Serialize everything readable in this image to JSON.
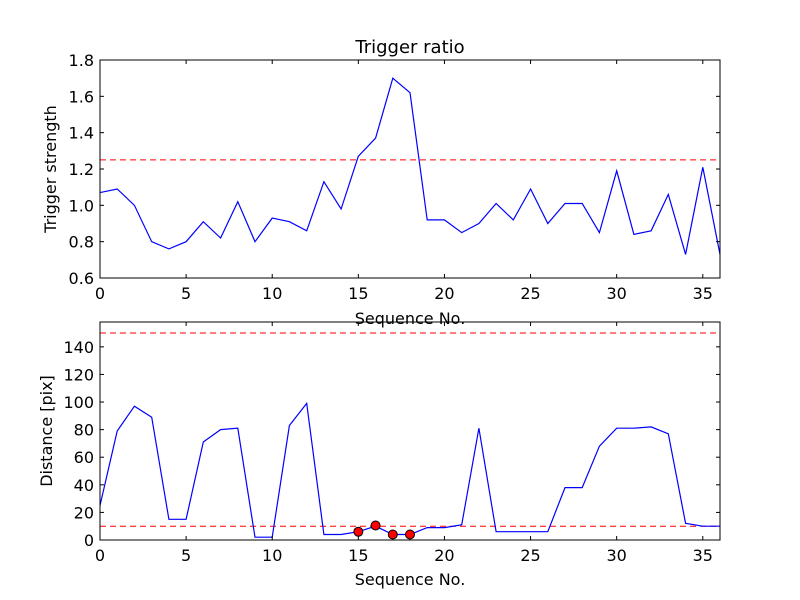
{
  "chart_data": [
    {
      "type": "line",
      "title": "Trigger ratio",
      "xlabel": "Sequence No.",
      "ylabel": "Trigger strength",
      "xlim": [
        0,
        36
      ],
      "ylim": [
        0.6,
        1.8
      ],
      "xticks": [
        0,
        5,
        10,
        15,
        20,
        25,
        30,
        35
      ],
      "yticks": [
        0.6,
        0.8,
        1.0,
        1.2,
        1.4,
        1.6,
        1.8
      ],
      "xtick_labels": [
        "0",
        "5",
        "10",
        "15",
        "20",
        "25",
        "30",
        "35"
      ],
      "ytick_labels": [
        "0.6",
        "0.8",
        "1.0",
        "1.2",
        "1.4",
        "1.6",
        "1.8"
      ],
      "grid": false,
      "series": [
        {
          "color": "#0000ff",
          "x": [
            0,
            1,
            2,
            3,
            4,
            5,
            6,
            7,
            8,
            9,
            10,
            11,
            12,
            13,
            14,
            15,
            16,
            17,
            18,
            19,
            20,
            21,
            22,
            23,
            24,
            25,
            26,
            27,
            28,
            29,
            30,
            31,
            32,
            33,
            34,
            35,
            36
          ],
          "values": [
            1.07,
            1.09,
            1.0,
            0.8,
            0.76,
            0.8,
            0.91,
            0.82,
            1.02,
            0.8,
            0.93,
            0.91,
            0.86,
            1.13,
            0.98,
            1.27,
            1.37,
            1.7,
            1.62,
            0.92,
            0.92,
            0.85,
            0.9,
            1.01,
            0.92,
            1.09,
            0.9,
            1.01,
            1.01,
            0.85,
            1.19,
            0.84,
            0.86,
            1.06,
            0.73,
            1.21,
            0.73
          ]
        }
      ],
      "hlines": [
        {
          "y": 1.25,
          "color": "#ff0000",
          "style": "dashed"
        }
      ]
    },
    {
      "type": "line",
      "title": "",
      "xlabel": "Sequence No.",
      "ylabel": "Distance [pix]",
      "xlim": [
        0,
        36
      ],
      "ylim": [
        0,
        158
      ],
      "xticks": [
        0,
        5,
        10,
        15,
        20,
        25,
        30,
        35
      ],
      "yticks": [
        0,
        20,
        40,
        60,
        80,
        100,
        120,
        140
      ],
      "xtick_labels": [
        "0",
        "5",
        "10",
        "15",
        "20",
        "25",
        "30",
        "35"
      ],
      "ytick_labels": [
        "0",
        "20",
        "40",
        "60",
        "80",
        "100",
        "120",
        "140"
      ],
      "grid": false,
      "series": [
        {
          "color": "#0000ff",
          "x": [
            0,
            1,
            2,
            3,
            4,
            5,
            6,
            7,
            8,
            9,
            10,
            11,
            12,
            13,
            14,
            15,
            16,
            17,
            18,
            19,
            20,
            21,
            22,
            23,
            24,
            25,
            26,
            27,
            28,
            29,
            30,
            31,
            32,
            33,
            34,
            35,
            36
          ],
          "values": [
            25,
            79,
            97,
            89,
            15,
            15,
            71,
            80,
            81,
            2,
            2,
            83,
            99,
            4,
            4,
            6,
            10,
            4,
            4,
            9,
            9,
            11,
            81,
            6,
            6,
            6,
            6,
            38,
            38,
            68,
            81,
            81,
            82,
            77,
            12,
            10,
            10
          ]
        }
      ],
      "markers": {
        "color": "#ff0000",
        "x": [
          15,
          16,
          17,
          18
        ],
        "y": [
          6,
          10.5,
          4,
          4
        ]
      },
      "hlines": [
        {
          "y": 150,
          "color": "#ff0000",
          "style": "dashed"
        },
        {
          "y": 10,
          "color": "#ff0000",
          "style": "dashed"
        }
      ]
    }
  ]
}
